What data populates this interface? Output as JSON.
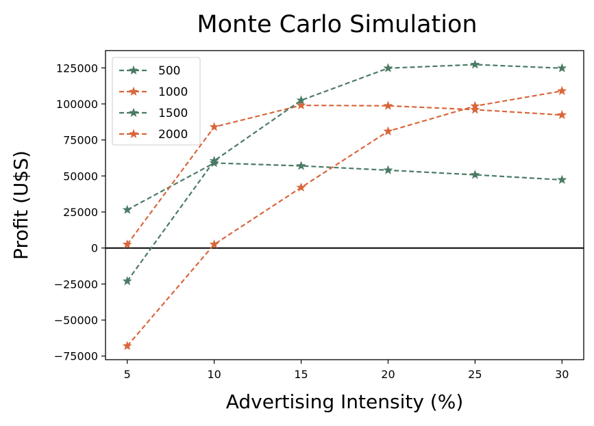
{
  "chart_data": {
    "type": "line",
    "title": "Monte Carlo Simulation",
    "xlabel": "Advertising Intensity (%)",
    "ylabel": "Profit (U$S)",
    "x": [
      5,
      10,
      15,
      20,
      25,
      30
    ],
    "xticks": [
      "5",
      "10",
      "15",
      "20",
      "25",
      "30"
    ],
    "yticks": [
      "125000",
      "100000",
      "75000",
      "50000",
      "25000",
      "0",
      "−25000",
      "−50000",
      "−75000"
    ],
    "ytick_values": [
      125000,
      100000,
      75000,
      50000,
      25000,
      0,
      -25000,
      -50000,
      -75000
    ],
    "xlim": [
      3.75,
      31.25
    ],
    "ylim": [
      -77500,
      137000
    ],
    "zero_line": true,
    "grid": false,
    "legend_position": "upper-left",
    "marker": "star",
    "line_style": "dashed",
    "series": [
      {
        "name": "500",
        "color": "#4a7a64",
        "values": [
          26500,
          59000,
          57000,
          54000,
          50800,
          47300
        ]
      },
      {
        "name": "1000",
        "color": "#d9663b",
        "values": [
          2500,
          84000,
          99000,
          98700,
          96000,
          92300
        ]
      },
      {
        "name": "1500",
        "color": "#4a7a64",
        "values": [
          -23000,
          60500,
          102500,
          124800,
          127300,
          124800
        ]
      },
      {
        "name": "2000",
        "color": "#d9663b",
        "values": [
          -68000,
          2500,
          42000,
          81000,
          98500,
          109000
        ]
      }
    ]
  }
}
